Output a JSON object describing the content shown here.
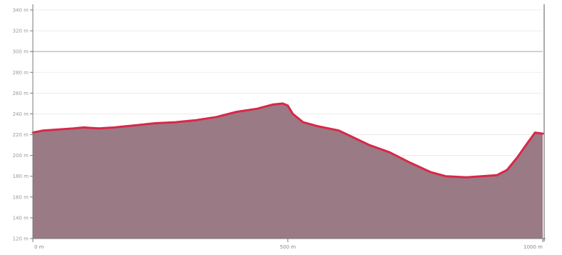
{
  "chart_data": {
    "type": "area",
    "title": "",
    "xlabel": "",
    "ylabel": "",
    "y_ticks": [
      "120 m",
      "140 m",
      "160 m",
      "180 m",
      "200 m",
      "220 m",
      "240 m",
      "260 m",
      "280 m",
      "300 m",
      "320 m",
      "340 m"
    ],
    "y_tick_values": [
      120,
      140,
      160,
      180,
      200,
      220,
      240,
      260,
      280,
      300,
      320,
      340
    ],
    "x_ticks": [
      "0 m",
      "500 m",
      "1000 m"
    ],
    "x_tick_values": [
      0,
      500,
      1000
    ],
    "xlim": [
      0,
      1000
    ],
    "ylim": [
      120,
      340
    ],
    "reference_line": 300,
    "grid": true,
    "legend": "none",
    "colors": {
      "fill": "#9a7a84",
      "line": "#d8284a",
      "grid": "#e6e6e6",
      "reference": "#a8a8a8",
      "axis": "#7a7a7a"
    },
    "series": [
      {
        "x": [
          0,
          20,
          50,
          80,
          100,
          130,
          160,
          200,
          240,
          280,
          320,
          360,
          400,
          440,
          470,
          490,
          500,
          510,
          530,
          560,
          600,
          630,
          660,
          700,
          740,
          780,
          810,
          850,
          880,
          910,
          930,
          950,
          970,
          985,
          1000
        ],
        "y": [
          222,
          224,
          225,
          226,
          227,
          226,
          227,
          229,
          231,
          232,
          234,
          237,
          242,
          245,
          249,
          250,
          248,
          240,
          232,
          228,
          224,
          217,
          210,
          203,
          193,
          184,
          180,
          179,
          180,
          181,
          186,
          198,
          212,
          222,
          221
        ]
      }
    ]
  }
}
